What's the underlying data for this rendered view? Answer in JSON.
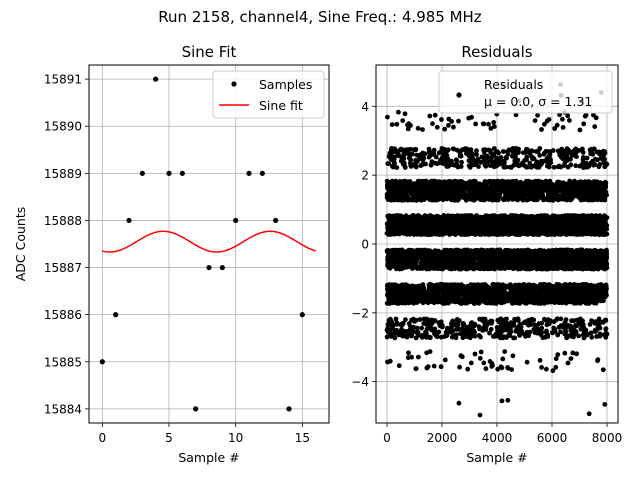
{
  "suptitle": "Run 2158, channel4, Sine Freq.: 4.985 MHz",
  "chart_data": [
    {
      "type": "scatter",
      "title": "Sine Fit",
      "xlabel": "Sample #",
      "ylabel": "ADC Counts",
      "xlim": [
        -1,
        17
      ],
      "ylim": [
        15883.7,
        15891.3
      ],
      "grid": true,
      "xticks": [
        0,
        5,
        10,
        15
      ],
      "yticks": [
        15884,
        15885,
        15886,
        15887,
        15888,
        15889,
        15890,
        15891
      ],
      "legend_location": "top-right",
      "samples": {
        "name": "Samples",
        "color": "#000000",
        "x": [
          0,
          1,
          2,
          3,
          4,
          5,
          6,
          7,
          8,
          9,
          10,
          11,
          12,
          13,
          14,
          15
        ],
        "y": [
          15885,
          15886,
          15888,
          15889,
          15891,
          15889,
          15889,
          15884,
          15887,
          15887,
          15888,
          15889,
          15889,
          15888,
          15884,
          15886
        ]
      },
      "fit": {
        "name": "Sine fit",
        "color": "#ff0000",
        "offset": 15887.55,
        "amplitude": 0.22,
        "period": 8.02,
        "phase_deg": 245,
        "x_range": [
          0,
          16
        ]
      }
    },
    {
      "type": "scatter",
      "title": "Residuals",
      "xlabel": "Sample #",
      "ylabel": "",
      "xlim": [
        -400,
        8400
      ],
      "ylim": [
        -5.2,
        5.2
      ],
      "grid": true,
      "xticks": [
        0,
        2000,
        4000,
        6000,
        8000
      ],
      "yticks": [
        -4,
        -2,
        0,
        2,
        4
      ],
      "legend_location": "top-right",
      "legend_title": "Residuals",
      "legend_stats": "μ = 0.0, σ = 1.31",
      "series": {
        "name": "Residuals",
        "color": "#000000",
        "n_points": 8000,
        "bands": [
          -4.7,
          -3.4,
          -2.45,
          -1.45,
          -0.45,
          0.55,
          1.55,
          2.5,
          3.55,
          4.4
        ],
        "band_counts": [
          6,
          55,
          420,
          1500,
          2000,
          2000,
          1500,
          420,
          55,
          6
        ],
        "band_half_width": 0.28
      }
    }
  ]
}
